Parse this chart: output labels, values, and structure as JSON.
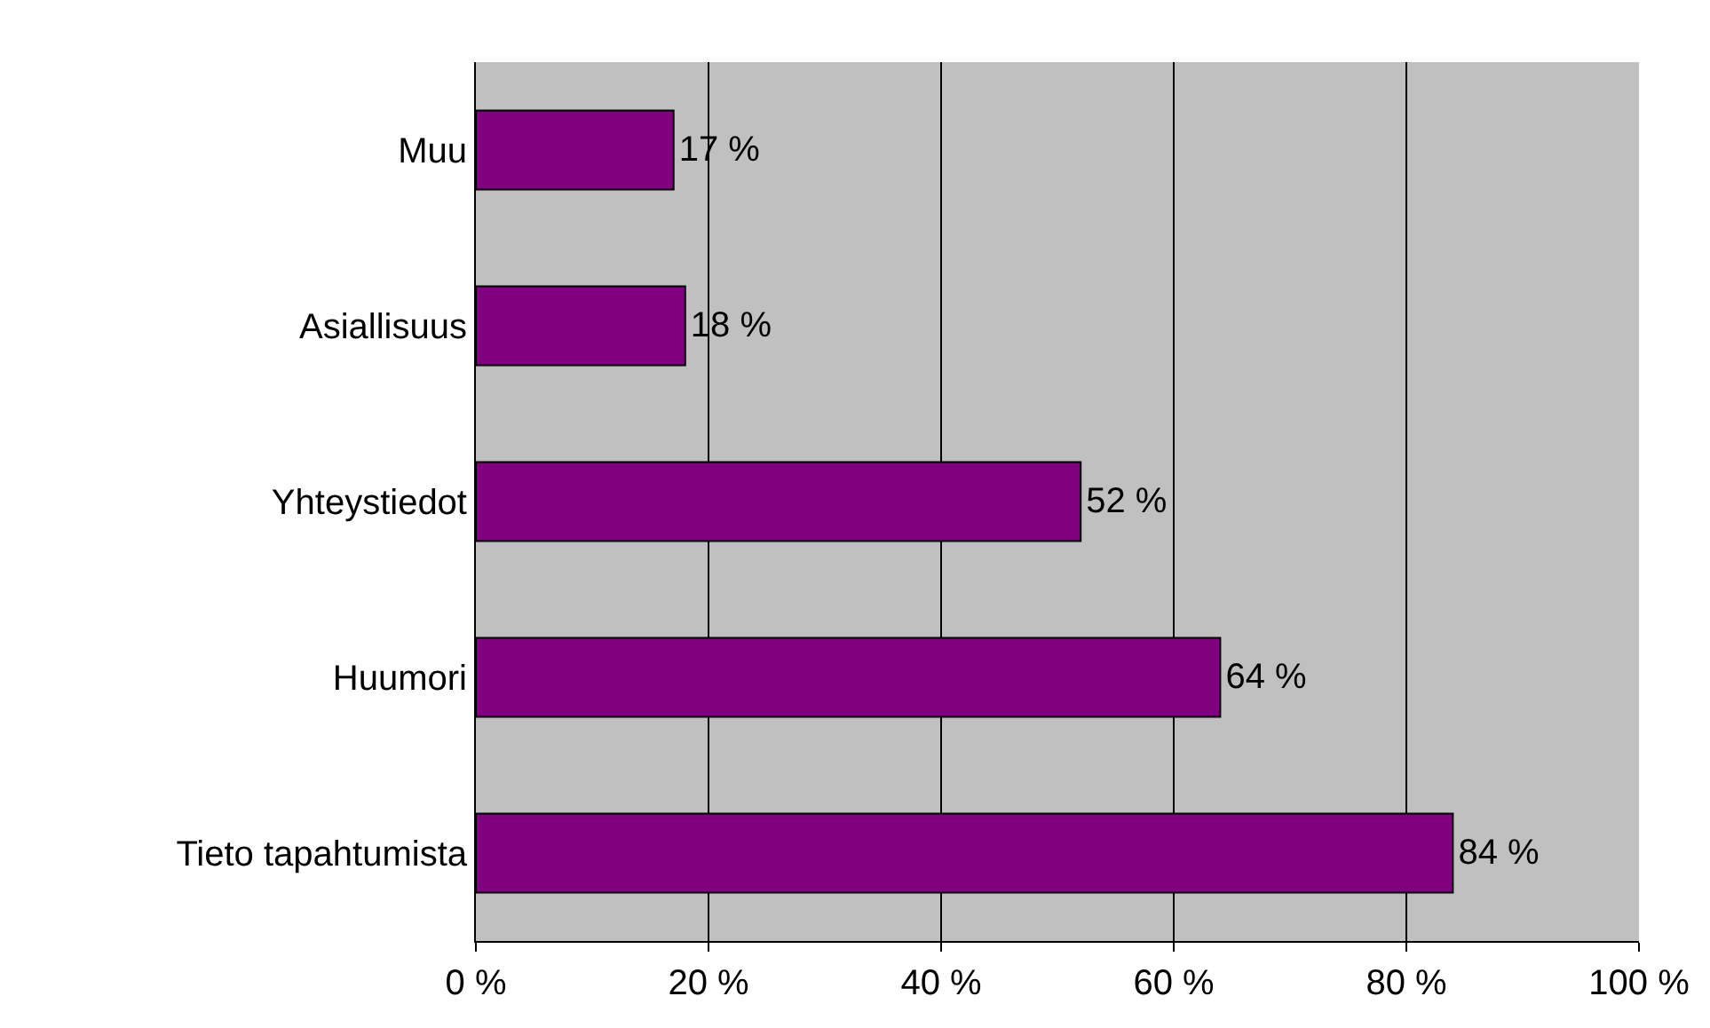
{
  "chart_data": {
    "type": "bar",
    "orientation": "horizontal",
    "categories": [
      "Muu",
      "Asiallisuus",
      "Yhteystiedot",
      "Huumori",
      "Tieto tapahtumista"
    ],
    "values": [
      17,
      18,
      52,
      64,
      84
    ],
    "value_labels": [
      "17 %",
      "18 %",
      "52 %",
      "64 %",
      "84 %"
    ],
    "color": "#800080",
    "xlim": [
      0,
      100
    ],
    "xticks": [
      {
        "value": 0,
        "label": "0 %"
      },
      {
        "value": 20,
        "label": "20 %"
      },
      {
        "value": 40,
        "label": "40 %"
      },
      {
        "value": 60,
        "label": "60 %"
      },
      {
        "value": 80,
        "label": "80 %"
      },
      {
        "value": 100,
        "label": "100 %"
      }
    ],
    "grid": "x",
    "legend": false
  }
}
